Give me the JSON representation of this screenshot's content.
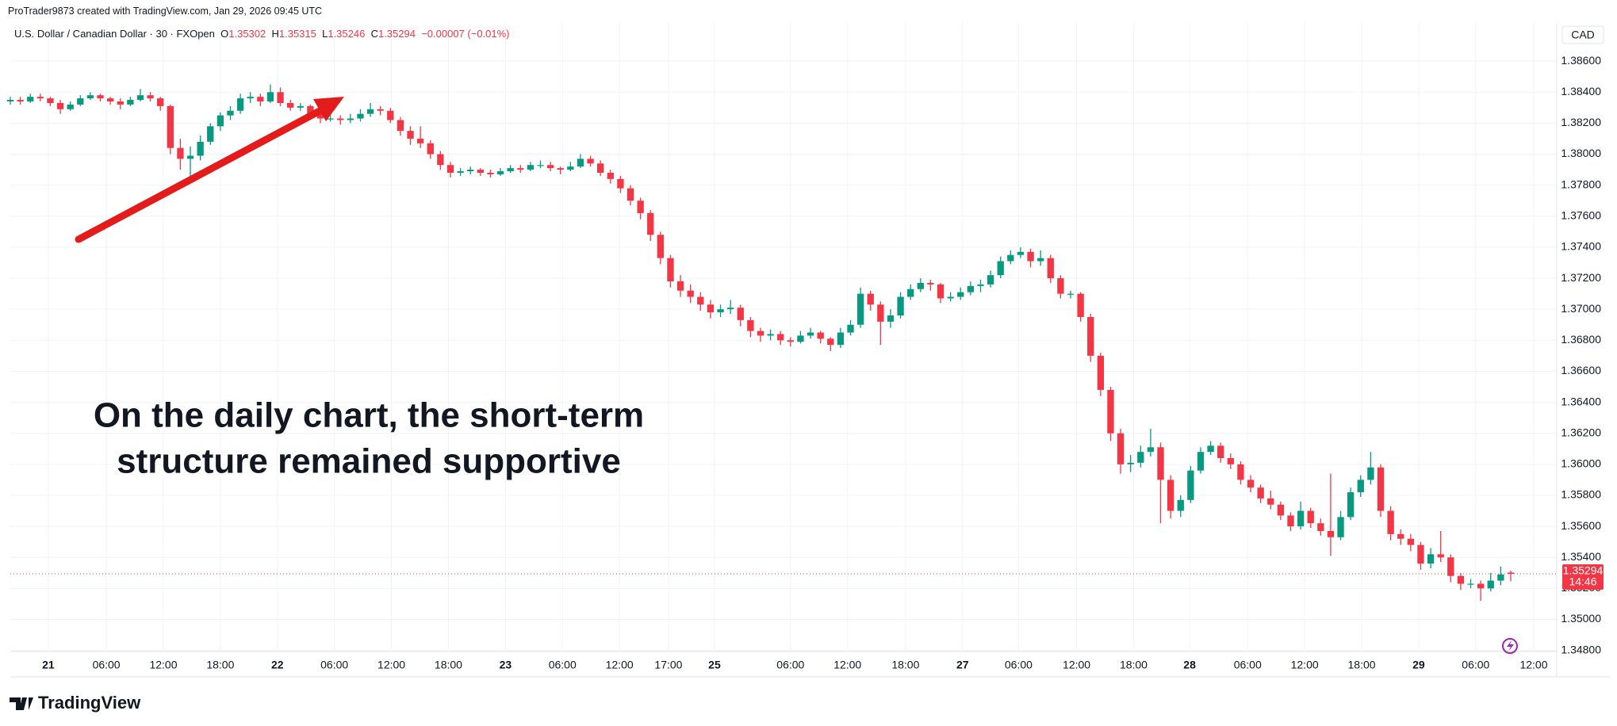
{
  "header": {
    "credit": "ProTrader9873 created with TradingView.com, Jan 29, 2026 09:45 UTC",
    "symbol": "U.S. Dollar / Canadian Dollar · 30 · FXOpen",
    "ohlc_labels": [
      "O",
      "H",
      "L",
      "C"
    ],
    "change": "−0.00007 (−0.01%)",
    "currency": "CAD",
    "countdown": "14:46",
    "logo": "TradingView"
  },
  "chart_data": {
    "type": "candlestick",
    "annotation": [
      "On the daily chart, the short-term",
      "structure remained supportive"
    ],
    "up_color": "#089981",
    "down_color": "#f23645",
    "grid": true,
    "ylim": [
      1.34793,
      1.38846
    ],
    "yticks": [
      {
        "value": 1.348,
        "label": "1.34800"
      },
      {
        "value": 1.35,
        "label": "1.35000"
      },
      {
        "value": 1.352,
        "label": "1.35200"
      },
      {
        "value": 1.354,
        "label": "1.35400"
      },
      {
        "value": 1.356,
        "label": "1.35600"
      },
      {
        "value": 1.358,
        "label": "1.35800"
      },
      {
        "value": 1.36,
        "label": "1.36000"
      },
      {
        "value": 1.362,
        "label": "1.36200"
      },
      {
        "value": 1.364,
        "label": "1.36400"
      },
      {
        "value": 1.366,
        "label": "1.36600"
      },
      {
        "value": 1.368,
        "label": "1.36800"
      },
      {
        "value": 1.37,
        "label": "1.37000"
      },
      {
        "value": 1.372,
        "label": "1.37200"
      },
      {
        "value": 1.374,
        "label": "1.37400"
      },
      {
        "value": 1.376,
        "label": "1.37600"
      },
      {
        "value": 1.378,
        "label": "1.37800"
      },
      {
        "value": 1.38,
        "label": "1.38000"
      },
      {
        "value": 1.382,
        "label": "1.38200"
      },
      {
        "value": 1.384,
        "label": "1.38400"
      },
      {
        "value": 1.386,
        "label": "1.38600"
      }
    ],
    "xlim": [
      0,
      154.6
    ],
    "xticks": [
      {
        "value": 3.8,
        "label": "21"
      },
      {
        "value": 9.6,
        "label": "06:00"
      },
      {
        "value": 15.3,
        "label": "12:00"
      },
      {
        "value": 21.0,
        "label": "18:00"
      },
      {
        "value": 26.7,
        "label": "22"
      },
      {
        "value": 32.4,
        "label": "06:00"
      },
      {
        "value": 38.1,
        "label": "12:00"
      },
      {
        "value": 43.8,
        "label": "18:00"
      },
      {
        "value": 49.5,
        "label": "23"
      },
      {
        "value": 55.2,
        "label": "06:00"
      },
      {
        "value": 60.9,
        "label": "12:00"
      },
      {
        "value": 65.8,
        "label": "17:00"
      },
      {
        "value": 70.4,
        "label": "25"
      },
      {
        "value": 78.0,
        "label": "06:00"
      },
      {
        "value": 83.7,
        "label": "12:00"
      },
      {
        "value": 89.5,
        "label": "18:00"
      },
      {
        "value": 95.2,
        "label": "27"
      },
      {
        "value": 100.8,
        "label": "06:00"
      },
      {
        "value": 106.6,
        "label": "12:00"
      },
      {
        "value": 112.3,
        "label": "18:00"
      },
      {
        "value": 117.9,
        "label": "28"
      },
      {
        "value": 123.7,
        "label": "06:00"
      },
      {
        "value": 129.4,
        "label": "12:00"
      },
      {
        "value": 135.1,
        "label": "18:00"
      },
      {
        "value": 140.8,
        "label": "29"
      },
      {
        "value": 146.5,
        "label": "06:00"
      },
      {
        "value": 152.3,
        "label": "12:00"
      }
    ],
    "ohlc": [
      [
        1.3834,
        1.3837,
        1.3832,
        1.3835
      ],
      [
        1.3835,
        1.3837,
        1.3832,
        1.3834
      ],
      [
        1.3834,
        1.3839,
        1.3833,
        1.3837
      ],
      [
        1.3837,
        1.3839,
        1.3834,
        1.3836
      ],
      [
        1.3836,
        1.3837,
        1.3831,
        1.3833
      ],
      [
        1.3833,
        1.3835,
        1.3826,
        1.3829
      ],
      [
        1.3829,
        1.3834,
        1.3828,
        1.3832
      ],
      [
        1.3832,
        1.3838,
        1.3831,
        1.3836
      ],
      [
        1.3836,
        1.384,
        1.3835,
        1.3838
      ],
      [
        1.3838,
        1.3839,
        1.3834,
        1.3836
      ],
      [
        1.3836,
        1.3837,
        1.3832,
        1.3834
      ],
      [
        1.3834,
        1.3836,
        1.3829,
        1.3832
      ],
      [
        1.3832,
        1.3837,
        1.3831,
        1.3835
      ],
      [
        1.3835,
        1.3842,
        1.3834,
        1.3838
      ],
      [
        1.3838,
        1.384,
        1.3834,
        1.3836
      ],
      [
        1.3836,
        1.3837,
        1.3828,
        1.3831
      ],
      [
        1.3831,
        1.3832,
        1.38,
        1.3804
      ],
      [
        1.3804,
        1.381,
        1.379,
        1.3797
      ],
      [
        1.3797,
        1.3805,
        1.3786,
        1.3799
      ],
      [
        1.3799,
        1.3812,
        1.3796,
        1.3808
      ],
      [
        1.3808,
        1.382,
        1.3806,
        1.3818
      ],
      [
        1.3818,
        1.3827,
        1.3815,
        1.3825
      ],
      [
        1.3825,
        1.3831,
        1.3822,
        1.3828
      ],
      [
        1.3828,
        1.3839,
        1.3826,
        1.3836
      ],
      [
        1.3836,
        1.384,
        1.3833,
        1.3837
      ],
      [
        1.3837,
        1.3839,
        1.3831,
        1.3834
      ],
      [
        1.3834,
        1.3845,
        1.3833,
        1.384
      ],
      [
        1.384,
        1.3843,
        1.3831,
        1.3833
      ],
      [
        1.3833,
        1.3835,
        1.3828,
        1.383
      ],
      [
        1.383,
        1.3833,
        1.3828,
        1.3831
      ],
      [
        1.3831,
        1.3832,
        1.3823,
        1.3826
      ],
      [
        1.3826,
        1.3828,
        1.382,
        1.3823
      ],
      [
        1.3823,
        1.3826,
        1.3821,
        1.3823
      ],
      [
        1.3823,
        1.3825,
        1.3819,
        1.3822
      ],
      [
        1.3822,
        1.3826,
        1.382,
        1.3823
      ],
      [
        1.3823,
        1.3829,
        1.3821,
        1.3826
      ],
      [
        1.3826,
        1.3833,
        1.3824,
        1.3829
      ],
      [
        1.3829,
        1.3831,
        1.3825,
        1.3828
      ],
      [
        1.3828,
        1.383,
        1.382,
        1.3822
      ],
      [
        1.3822,
        1.3824,
        1.3812,
        1.3815
      ],
      [
        1.3815,
        1.3818,
        1.3806,
        1.381
      ],
      [
        1.381,
        1.3818,
        1.3804,
        1.3807
      ],
      [
        1.3807,
        1.3809,
        1.3797,
        1.38
      ],
      [
        1.38,
        1.3802,
        1.379,
        1.3793
      ],
      [
        1.3793,
        1.3795,
        1.3785,
        1.3788
      ],
      [
        1.3788,
        1.3791,
        1.3786,
        1.3789
      ],
      [
        1.3789,
        1.3792,
        1.3787,
        1.379
      ],
      [
        1.379,
        1.3791,
        1.3786,
        1.3788
      ],
      [
        1.3788,
        1.379,
        1.3785,
        1.3787
      ],
      [
        1.3787,
        1.3791,
        1.3786,
        1.3789
      ],
      [
        1.3789,
        1.3793,
        1.3788,
        1.3791
      ],
      [
        1.3791,
        1.3793,
        1.3788,
        1.379
      ],
      [
        1.379,
        1.3795,
        1.3789,
        1.3793
      ],
      [
        1.3793,
        1.3796,
        1.3791,
        1.3793
      ],
      [
        1.3793,
        1.3795,
        1.3789,
        1.3791
      ],
      [
        1.3791,
        1.3792,
        1.3787,
        1.379
      ],
      [
        1.379,
        1.3795,
        1.3789,
        1.3792
      ],
      [
        1.3792,
        1.38,
        1.3791,
        1.3797
      ],
      [
        1.3797,
        1.3799,
        1.3792,
        1.3794
      ],
      [
        1.3794,
        1.3796,
        1.3786,
        1.3788
      ],
      [
        1.3788,
        1.379,
        1.3781,
        1.3784
      ],
      [
        1.3784,
        1.3786,
        1.3775,
        1.3778
      ],
      [
        1.3778,
        1.378,
        1.3767,
        1.377
      ],
      [
        1.377,
        1.3772,
        1.3758,
        1.3762
      ],
      [
        1.3762,
        1.3764,
        1.3744,
        1.3748
      ],
      [
        1.3748,
        1.375,
        1.3729,
        1.3733
      ],
      [
        1.3733,
        1.3735,
        1.3714,
        1.3718
      ],
      [
        1.3718,
        1.3722,
        1.3708,
        1.3712
      ],
      [
        1.3712,
        1.3716,
        1.3704,
        1.3708
      ],
      [
        1.3708,
        1.3711,
        1.3699,
        1.3703
      ],
      [
        1.3703,
        1.3706,
        1.3694,
        1.3698
      ],
      [
        1.3698,
        1.3703,
        1.3695,
        1.37
      ],
      [
        1.37,
        1.3706,
        1.3697,
        1.3701
      ],
      [
        1.3701,
        1.3703,
        1.3689,
        1.3693
      ],
      [
        1.3693,
        1.3695,
        1.3682,
        1.3686
      ],
      [
        1.3686,
        1.3688,
        1.3679,
        1.3683
      ],
      [
        1.3683,
        1.3687,
        1.368,
        1.3684
      ],
      [
        1.3684,
        1.3686,
        1.3677,
        1.368
      ],
      [
        1.368,
        1.3682,
        1.3676,
        1.3679
      ],
      [
        1.3679,
        1.3686,
        1.3678,
        1.3683
      ],
      [
        1.3683,
        1.3688,
        1.3681,
        1.3685
      ],
      [
        1.3685,
        1.3686,
        1.3678,
        1.3681
      ],
      [
        1.3681,
        1.3682,
        1.3673,
        1.3677
      ],
      [
        1.3677,
        1.3688,
        1.3675,
        1.3685
      ],
      [
        1.3685,
        1.3693,
        1.3683,
        1.369
      ],
      [
        1.369,
        1.3714,
        1.3688,
        1.371
      ],
      [
        1.371,
        1.3712,
        1.3699,
        1.3703
      ],
      [
        1.3703,
        1.3705,
        1.3677,
        1.3692
      ],
      [
        1.3692,
        1.37,
        1.3688,
        1.3696
      ],
      [
        1.3696,
        1.3711,
        1.3694,
        1.3708
      ],
      [
        1.3708,
        1.3716,
        1.3706,
        1.3713
      ],
      [
        1.3713,
        1.372,
        1.3711,
        1.3717
      ],
      [
        1.3717,
        1.3719,
        1.3712,
        1.3716
      ],
      [
        1.3716,
        1.3717,
        1.3704,
        1.3707
      ],
      [
        1.3707,
        1.3711,
        1.3705,
        1.3708
      ],
      [
        1.3708,
        1.3714,
        1.3706,
        1.3711
      ],
      [
        1.3711,
        1.3718,
        1.3709,
        1.3715
      ],
      [
        1.3715,
        1.3719,
        1.3711,
        1.3716
      ],
      [
        1.3716,
        1.3725,
        1.3714,
        1.3722
      ],
      [
        1.3722,
        1.3734,
        1.372,
        1.3731
      ],
      [
        1.3731,
        1.3738,
        1.3729,
        1.3735
      ],
      [
        1.3735,
        1.374,
        1.3733,
        1.3737
      ],
      [
        1.3737,
        1.3739,
        1.3727,
        1.3731
      ],
      [
        1.3731,
        1.3738,
        1.3728,
        1.3733
      ],
      [
        1.3733,
        1.3735,
        1.3717,
        1.372
      ],
      [
        1.372,
        1.3722,
        1.3707,
        1.371
      ],
      [
        1.371,
        1.3712,
        1.3707,
        1.371
      ],
      [
        1.371,
        1.3711,
        1.3692,
        1.3695
      ],
      [
        1.3695,
        1.3697,
        1.3666,
        1.367
      ],
      [
        1.367,
        1.3672,
        1.3644,
        1.3648
      ],
      [
        1.3648,
        1.365,
        1.3615,
        1.362
      ],
      [
        1.362,
        1.3623,
        1.3594,
        1.36
      ],
      [
        1.36,
        1.3606,
        1.3595,
        1.3601
      ],
      [
        1.3601,
        1.3612,
        1.3598,
        1.3608
      ],
      [
        1.3608,
        1.3623,
        1.3605,
        1.3611
      ],
      [
        1.3611,
        1.3614,
        1.3562,
        1.359
      ],
      [
        1.359,
        1.3593,
        1.3565,
        1.357
      ],
      [
        1.357,
        1.358,
        1.3566,
        1.3577
      ],
      [
        1.3577,
        1.3599,
        1.3575,
        1.3596
      ],
      [
        1.3596,
        1.3611,
        1.3594,
        1.3608
      ],
      [
        1.3608,
        1.3615,
        1.3606,
        1.3612
      ],
      [
        1.3612,
        1.3614,
        1.3601,
        1.3604
      ],
      [
        1.3604,
        1.3607,
        1.3597,
        1.36
      ],
      [
        1.36,
        1.3602,
        1.3587,
        1.359
      ],
      [
        1.359,
        1.3593,
        1.3582,
        1.3585
      ],
      [
        1.3585,
        1.3587,
        1.3575,
        1.3578
      ],
      [
        1.3578,
        1.3583,
        1.3571,
        1.3574
      ],
      [
        1.3574,
        1.3576,
        1.3564,
        1.3567
      ],
      [
        1.3567,
        1.3569,
        1.3557,
        1.356
      ],
      [
        1.356,
        1.3576,
        1.3558,
        1.357
      ],
      [
        1.357,
        1.3572,
        1.3559,
        1.3562
      ],
      [
        1.3562,
        1.3565,
        1.3554,
        1.3557
      ],
      [
        1.3557,
        1.3594,
        1.3541,
        1.3553
      ],
      [
        1.3553,
        1.357,
        1.3551,
        1.3566
      ],
      [
        1.3566,
        1.3585,
        1.3564,
        1.3582
      ],
      [
        1.3582,
        1.3593,
        1.3579,
        1.359
      ],
      [
        1.359,
        1.3608,
        1.3587,
        1.3598
      ],
      [
        1.3598,
        1.36,
        1.3566,
        1.357
      ],
      [
        1.357,
        1.3573,
        1.3551,
        1.3555
      ],
      [
        1.3555,
        1.3558,
        1.3548,
        1.3552
      ],
      [
        1.3552,
        1.3555,
        1.3544,
        1.3548
      ],
      [
        1.3548,
        1.355,
        1.3532,
        1.3536
      ],
      [
        1.3536,
        1.3546,
        1.3533,
        1.3542
      ],
      [
        1.3542,
        1.3557,
        1.3537,
        1.354
      ],
      [
        1.354,
        1.3542,
        1.3524,
        1.3528
      ],
      [
        1.3528,
        1.353,
        1.3519,
        1.3523
      ],
      [
        1.3523,
        1.3526,
        1.352,
        1.3523
      ],
      [
        1.3523,
        1.3525,
        1.3512,
        1.352
      ],
      [
        1.352,
        1.353,
        1.3518,
        1.3525
      ],
      [
        1.3525,
        1.3534,
        1.3522,
        1.3529
      ],
      [
        1.35302,
        1.35315,
        1.35246,
        1.35294
      ]
    ]
  }
}
